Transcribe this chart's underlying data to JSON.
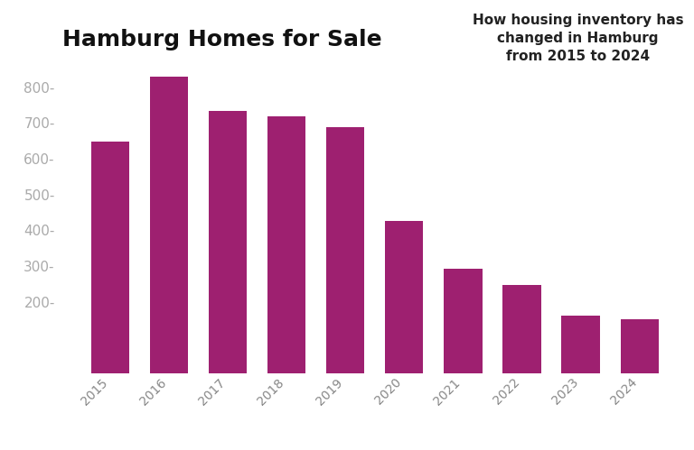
{
  "title": "Hamburg Homes for Sale",
  "annotation": "How housing inventory has\nchanged in Hamburg\nfrom 2015 to 2024",
  "categories": [
    "2015",
    "2016",
    "2017",
    "2018",
    "2019",
    "2020",
    "2021",
    "2022",
    "2023",
    "2024"
  ],
  "values": [
    648,
    830,
    733,
    718,
    688,
    425,
    292,
    248,
    162,
    152
  ],
  "bar_color": "#9E2070",
  "background_color": "#ffffff",
  "ylim": [
    0,
    880
  ],
  "yticks": [
    200,
    300,
    400,
    500,
    600,
    700,
    800
  ],
  "title_fontsize": 18,
  "annotation_fontsize": 11,
  "tick_label_fontsize": 10,
  "ytick_fontsize": 11,
  "bar_width": 0.65
}
